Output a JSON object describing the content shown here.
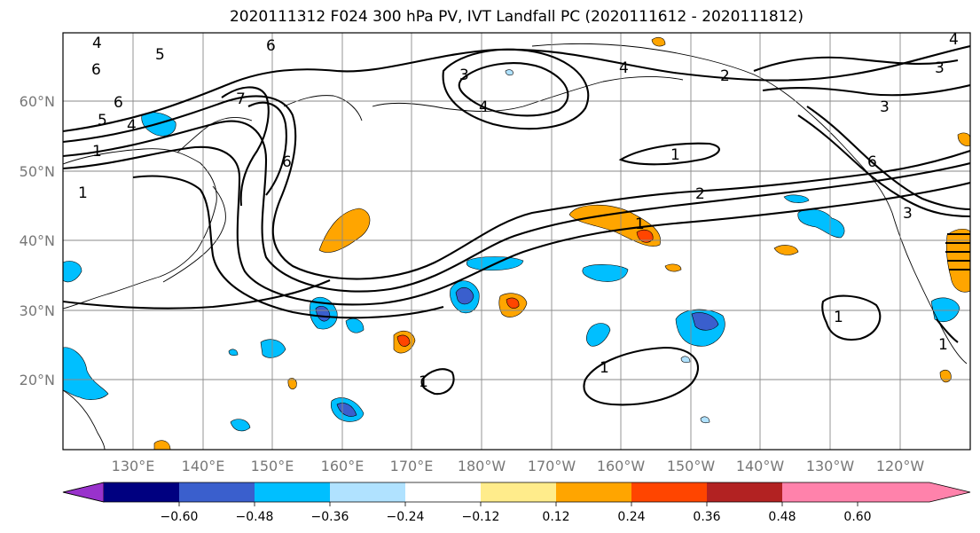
{
  "title": "2020111312 F024 300 hPa PV, IVT Landfall PC (2020111612 - 2020111812)",
  "latitude_labels": [
    "60°N",
    "50°N",
    "40°N",
    "30°N",
    "20°N"
  ],
  "longitude_labels": [
    "130°E",
    "140°E",
    "150°E",
    "160°E",
    "170°E",
    "180°W",
    "170°W",
    "160°W",
    "150°W",
    "140°W",
    "130°W",
    "120°W"
  ],
  "colorbar": {
    "colors": [
      "#9932cc",
      "#000080",
      "#3a5fcd",
      "#00bfff",
      "#b0e2ff",
      "#ffffff",
      "#ffec8b",
      "#ffa500",
      "#ff4500",
      "#b22222",
      "#ff82ab"
    ],
    "tick_labels": [
      "−0.60",
      "−0.48",
      "−0.36",
      "−0.24",
      "−0.12",
      "0.12",
      "0.24",
      "0.36",
      "0.48",
      "0.60"
    ]
  },
  "contour_labels": {
    "l1": "4",
    "l2": "5",
    "l3": "6",
    "l4": "6",
    "l5": "5",
    "l6": "4",
    "l7": "1",
    "l8": "1",
    "l9": "7",
    "l10": "6",
    "l11": "6",
    "l12": "3",
    "l13": "4",
    "l14": "2",
    "l15": "1",
    "l16": "2",
    "l17": "3",
    "l18": "6",
    "l19": "3",
    "l20": "4",
    "l21": "1",
    "l22": "1",
    "l23": "1",
    "l24": "1",
    "l25": "4",
    "l26": "3",
    "l27": "2"
  }
}
